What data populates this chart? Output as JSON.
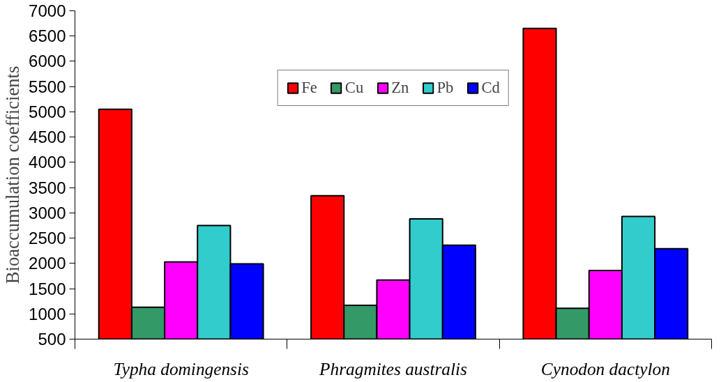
{
  "chart_data": {
    "type": "bar",
    "ylabel": "Bioaccumulation coefficients",
    "categories": [
      "Typha domingensis",
      "Phragmites australis",
      "Cynodon dactylon"
    ],
    "series": [
      {
        "name": "Fe",
        "color": "#ff0000",
        "values": [
          5050,
          3340,
          6650
        ]
      },
      {
        "name": "Cu",
        "color": "#339966",
        "values": [
          1130,
          1170,
          1110
        ]
      },
      {
        "name": "Zn",
        "color": "#ff00ff",
        "values": [
          2030,
          1670,
          1860
        ]
      },
      {
        "name": "Pb",
        "color": "#33cccc",
        "values": [
          2750,
          2880,
          2930
        ]
      },
      {
        "name": "Cd",
        "color": "#0000ff",
        "values": [
          1990,
          2360,
          2290
        ]
      }
    ],
    "ylim": [
      500,
      7000
    ],
    "yticks": [
      500,
      1000,
      1500,
      2000,
      2500,
      3000,
      3500,
      4000,
      4500,
      5000,
      5500,
      6000,
      6500,
      7000
    ],
    "grid": false,
    "legend": "top"
  }
}
